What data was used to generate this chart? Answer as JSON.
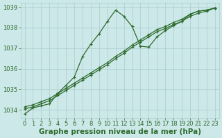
{
  "xlabel": "Graphe pression niveau de la mer (hPa)",
  "ylabel": "",
  "bg_color": "#cce8e8",
  "grid_color": "#aacccc",
  "line_color": "#2d6b2d",
  "marker_color": "#2d6b2d",
  "text_color": "#2d6b2d",
  "xlim": [
    -0.5,
    23.5
  ],
  "ylim": [
    1033.6,
    1039.2
  ],
  "yticks": [
    1034,
    1035,
    1036,
    1037,
    1038,
    1039
  ],
  "xticks": [
    0,
    1,
    2,
    3,
    4,
    5,
    6,
    7,
    8,
    9,
    10,
    11,
    12,
    13,
    14,
    15,
    16,
    17,
    18,
    19,
    20,
    21,
    22,
    23
  ],
  "line1_x": [
    0,
    1,
    2,
    3,
    4,
    5,
    6,
    7,
    8,
    9,
    10,
    11,
    12,
    13,
    14,
    15,
    16,
    17,
    18,
    19,
    20,
    21,
    22,
    23
  ],
  "line1_y": [
    1033.8,
    1034.1,
    1034.2,
    1034.3,
    1034.8,
    1035.2,
    1035.6,
    1036.6,
    1037.2,
    1037.7,
    1038.3,
    1038.85,
    1038.55,
    1038.05,
    1037.1,
    1037.05,
    1037.55,
    1037.85,
    1038.1,
    1038.3,
    1038.65,
    1038.8,
    1038.85,
    1038.95
  ],
  "line2_x": [
    0,
    1,
    2,
    3,
    4,
    5,
    6,
    7,
    8,
    9,
    10,
    11,
    12,
    13,
    14,
    15,
    16,
    17,
    18,
    19,
    20,
    21,
    22,
    23
  ],
  "line2_y": [
    1034.05,
    1034.15,
    1034.3,
    1034.45,
    1034.7,
    1034.95,
    1035.2,
    1035.45,
    1035.7,
    1035.95,
    1036.2,
    1036.5,
    1036.75,
    1037.05,
    1037.3,
    1037.55,
    1037.8,
    1037.95,
    1038.15,
    1038.3,
    1038.55,
    1038.7,
    1038.8,
    1038.95
  ],
  "line3_x": [
    0,
    1,
    2,
    3,
    4,
    5,
    6,
    7,
    8,
    9,
    10,
    11,
    12,
    13,
    14,
    15,
    16,
    17,
    18,
    19,
    20,
    21,
    22,
    23
  ],
  "line3_y": [
    1034.15,
    1034.25,
    1034.4,
    1034.55,
    1034.8,
    1035.05,
    1035.3,
    1035.55,
    1035.8,
    1036.05,
    1036.3,
    1036.6,
    1036.85,
    1037.15,
    1037.4,
    1037.65,
    1037.9,
    1038.05,
    1038.25,
    1038.4,
    1038.65,
    1038.8,
    1038.85,
    1038.95
  ],
  "xlabel_fontsize": 7.5,
  "tick_fontsize": 6,
  "xlabel_color": "#2d6b2d",
  "xlabel_bold": true,
  "linewidth": 0.9,
  "markersize": 3.5,
  "markeredgewidth": 0.9
}
